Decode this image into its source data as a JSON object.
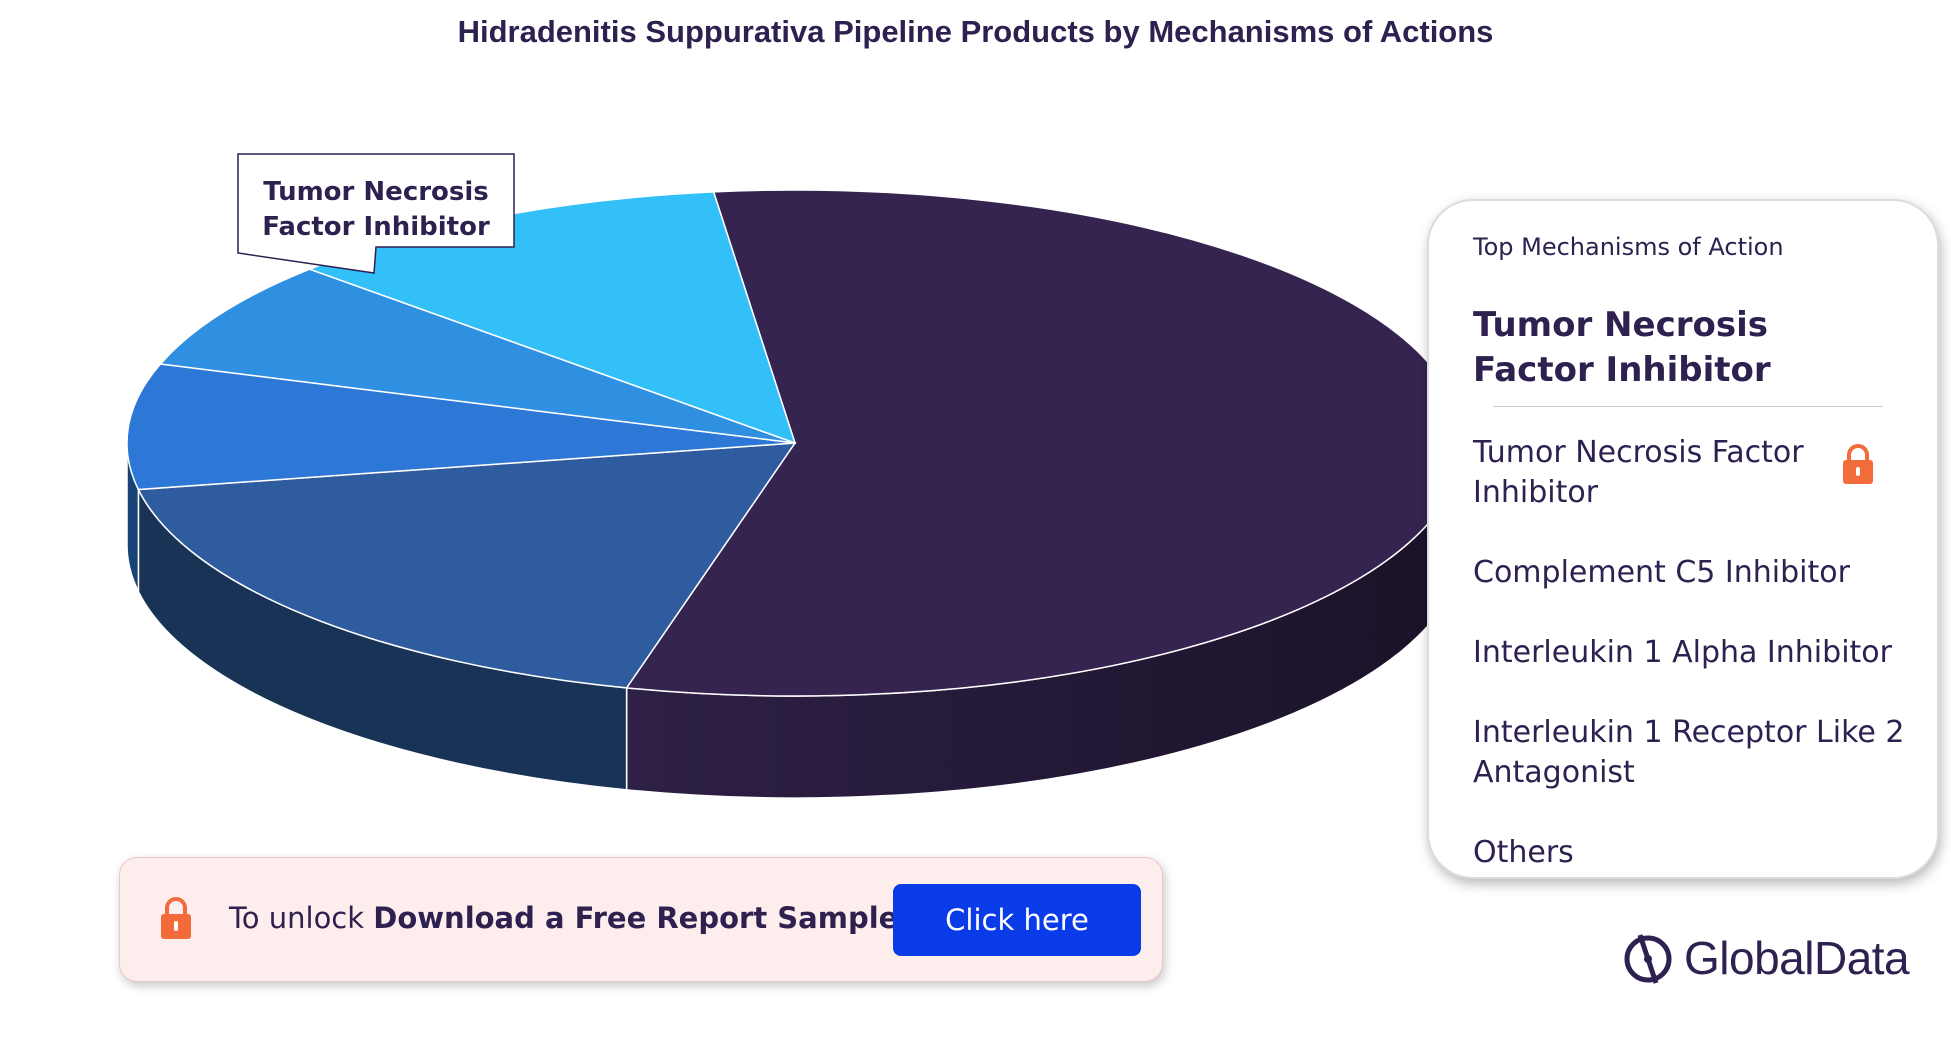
{
  "title": "Hidradenitis Suppurativa Pipeline Products by Mechanisms of Actions",
  "chart_data": {
    "type": "pie",
    "title": "Hidradenitis Suppurativa Pipeline Products by Mechanisms of Actions",
    "style": "3d",
    "slices": [
      {
        "label": "Tumor Necrosis Factor Inhibitor",
        "value": 56,
        "color": "#352350"
      },
      {
        "label": "",
        "value": 18,
        "color": "#2e5c9e"
      },
      {
        "label": "",
        "value": 8,
        "color": "#2d78d6"
      },
      {
        "label": "",
        "value": 7,
        "color": "#2f90e2"
      },
      {
        "label": "",
        "value": 11,
        "color": "#33bff7"
      }
    ],
    "callout": "Tumor Necrosis Factor Inhibitor",
    "legend": "right"
  },
  "legend": {
    "heading": "Top Mechanisms of Action",
    "selected": "Tumor Necrosis Factor Inhibitor",
    "items": [
      "Tumor Necrosis Factor Inhibitor",
      "Complement C5 Inhibitor",
      "Interleukin 1 Alpha Inhibitor",
      "Interleukin 1 Receptor Like 2 Antagonist",
      "Others"
    ],
    "locked_item_icon": "lock-icon"
  },
  "unlock": {
    "prefix": "To unlock",
    "bold": "Download a Free Report Sample",
    "button": "Click here",
    "icon": "lock-icon"
  },
  "brand": {
    "name": "GlobalData",
    "icon": "globaldata-logo-icon"
  },
  "colors": {
    "text": "#2e2150",
    "lock": "#f26b3a",
    "button": "#0a3be8",
    "unlock_bg": "#fdeeed"
  }
}
